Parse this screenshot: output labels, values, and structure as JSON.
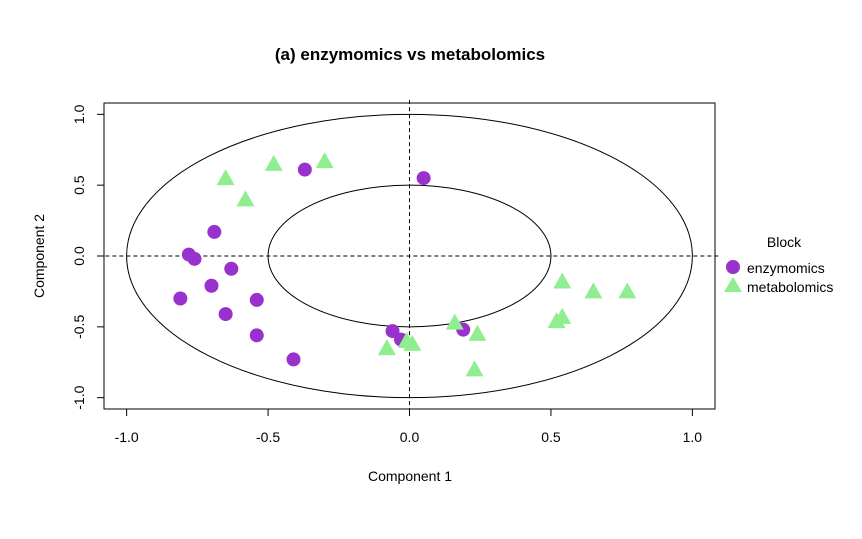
{
  "chart_data": {
    "type": "scatter",
    "title": "(a) enzymomics vs metabolomics",
    "xlabel": "Component  1",
    "ylabel": "Component  2",
    "xlim": [
      -1.08,
      1.08
    ],
    "ylim": [
      -1.08,
      1.08
    ],
    "xticks": [
      "-1.0",
      "-0.5",
      "0.0",
      "0.5",
      "1.0"
    ],
    "yticks": [
      "-1.0",
      "-0.5",
      "0.0",
      "0.5",
      "1.0"
    ],
    "reference_circles": [
      1.0,
      0.5
    ],
    "reference_lines": {
      "x": 0,
      "y": 0
    },
    "legend": {
      "title": "Block",
      "position": "right"
    },
    "series": [
      {
        "name": "enzymomics",
        "color": "#9932CC",
        "marker": "circle",
        "points": [
          {
            "x": 0.05,
            "y": 0.55
          },
          {
            "x": -0.37,
            "y": 0.61
          },
          {
            "x": -0.69,
            "y": 0.17
          },
          {
            "x": -0.78,
            "y": 0.01
          },
          {
            "x": -0.76,
            "y": -0.02
          },
          {
            "x": -0.63,
            "y": -0.09
          },
          {
            "x": -0.7,
            "y": -0.21
          },
          {
            "x": -0.81,
            "y": -0.3
          },
          {
            "x": -0.54,
            "y": -0.31
          },
          {
            "x": -0.65,
            "y": -0.41
          },
          {
            "x": -0.54,
            "y": -0.56
          },
          {
            "x": -0.41,
            "y": -0.73
          },
          {
            "x": -0.06,
            "y": -0.53
          },
          {
            "x": -0.03,
            "y": -0.59
          },
          {
            "x": 0.19,
            "y": -0.52
          }
        ]
      },
      {
        "name": "metabolomics",
        "color": "#90EE90",
        "marker": "triangle",
        "points": [
          {
            "x": -0.3,
            "y": 0.67
          },
          {
            "x": -0.48,
            "y": 0.65
          },
          {
            "x": -0.65,
            "y": 0.55
          },
          {
            "x": -0.58,
            "y": 0.4
          },
          {
            "x": 0.54,
            "y": -0.18
          },
          {
            "x": 0.65,
            "y": -0.25
          },
          {
            "x": 0.77,
            "y": -0.25
          },
          {
            "x": 0.54,
            "y": -0.43
          },
          {
            "x": 0.52,
            "y": -0.46
          },
          {
            "x": 0.16,
            "y": -0.47
          },
          {
            "x": 0.24,
            "y": -0.55
          },
          {
            "x": -0.08,
            "y": -0.65
          },
          {
            "x": -0.01,
            "y": -0.6
          },
          {
            "x": 0.01,
            "y": -0.62
          },
          {
            "x": 0.23,
            "y": -0.8
          }
        ]
      }
    ]
  }
}
